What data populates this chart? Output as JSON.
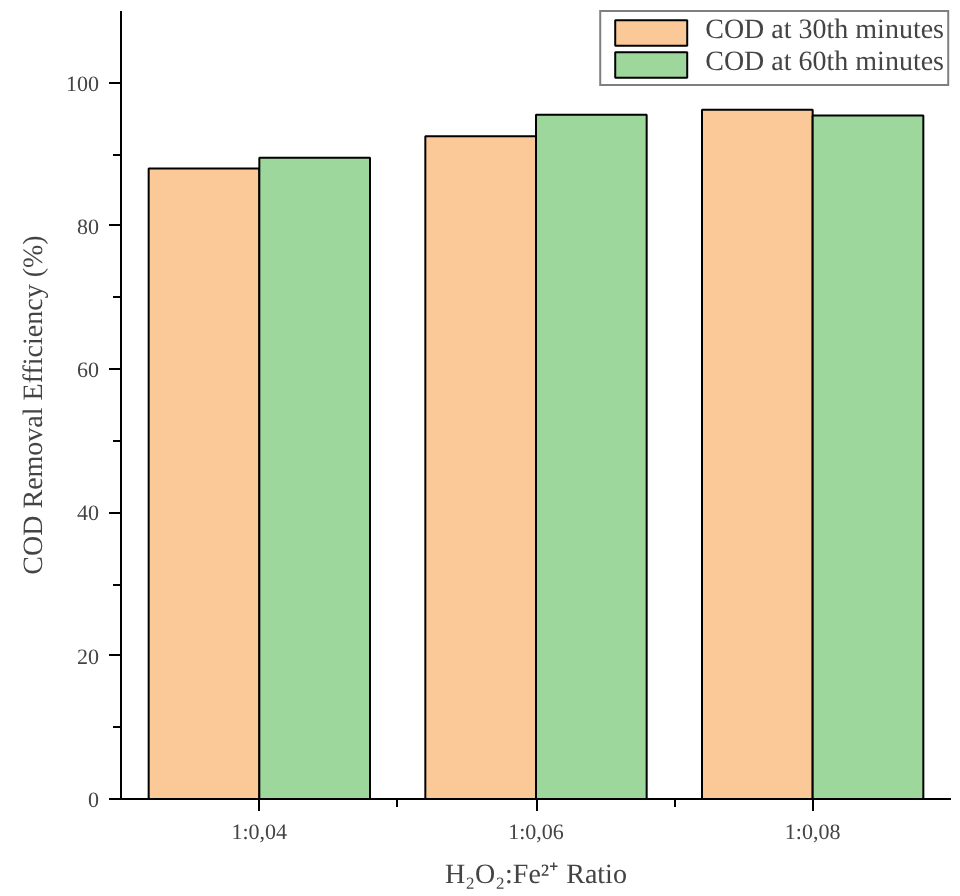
{
  "chart_data": {
    "type": "bar",
    "xlabel": "H₂O₂:Fe²⁺ Ratio",
    "ylabel": "COD Removal Efficiency (%)",
    "categories": [
      "1:0,04",
      "1:0,06",
      "1:0,08"
    ],
    "series": [
      {
        "name": "COD at 30th minutes",
        "color": "#fbc898",
        "values": [
          88.0,
          92.5,
          96.2
        ]
      },
      {
        "name": "COD at 60th minutes",
        "color": "#9dd79c",
        "values": [
          89.5,
          95.5,
          95.4
        ]
      }
    ],
    "ylim": [
      0,
      110
    ],
    "yticks": [
      0,
      20,
      40,
      60,
      80,
      100
    ],
    "grid": false,
    "legend": "top right"
  }
}
